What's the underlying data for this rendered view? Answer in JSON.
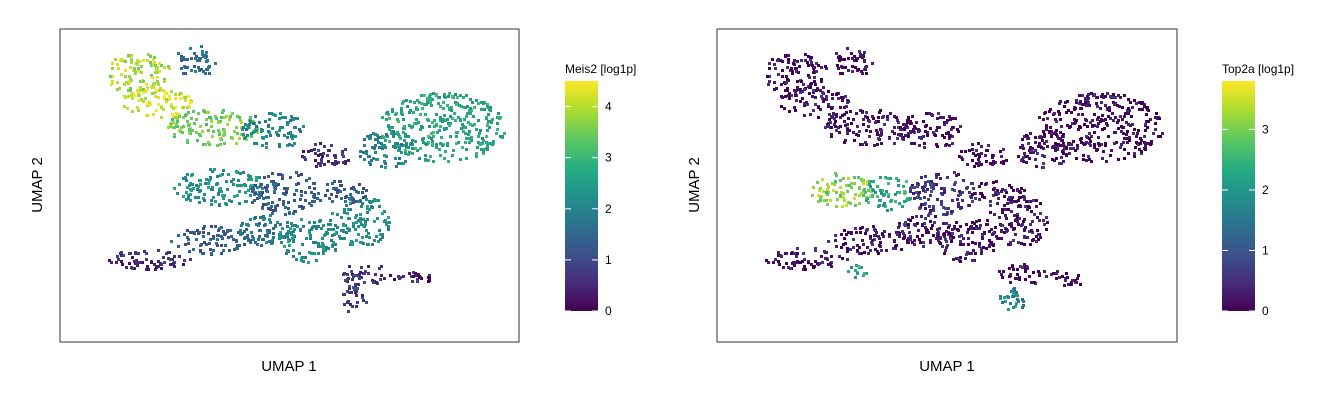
{
  "chart_data": [
    {
      "type": "scatter",
      "subtype": "umap-hexbin-feature-plot",
      "title": "",
      "xlabel": "UMAP 1",
      "ylabel": "UMAP 2",
      "legend": {
        "title": "Meis2 [log1p]",
        "placement": "right",
        "colormap": "viridis",
        "range": [
          0,
          4.5
        ],
        "ticks": [
          0,
          1,
          2,
          3,
          4
        ],
        "tick_labels": [
          "0",
          "1",
          "2",
          "3",
          "4"
        ]
      },
      "grid": false,
      "axis_ticks_shown": false,
      "regions": [
        {
          "x": 2.2,
          "y": 8.6,
          "rx": 0.9,
          "ry": 0.7,
          "value": 3.9
        },
        {
          "x": 2.7,
          "y": 7.7,
          "rx": 1.0,
          "ry": 0.5,
          "value": 4.2
        },
        {
          "x": 3.8,
          "y": 9.0,
          "rx": 0.6,
          "ry": 0.5,
          "value": 1.6
        },
        {
          "x": 4.3,
          "y": 6.9,
          "rx": 1.3,
          "ry": 0.6,
          "value": 3.5
        },
        {
          "x": 6.0,
          "y": 6.8,
          "rx": 0.9,
          "ry": 0.6,
          "value": 2.0
        },
        {
          "x": 7.5,
          "y": 6.0,
          "rx": 0.7,
          "ry": 0.4,
          "value": 0.6
        },
        {
          "x": 4.5,
          "y": 5.0,
          "rx": 1.3,
          "ry": 0.6,
          "value": 2.3
        },
        {
          "x": 6.3,
          "y": 4.8,
          "rx": 1.0,
          "ry": 0.7,
          "value": 1.3
        },
        {
          "x": 2.5,
          "y": 2.7,
          "rx": 1.2,
          "ry": 0.35,
          "value": 0.5
        },
        {
          "x": 4.3,
          "y": 3.3,
          "rx": 1.2,
          "ry": 0.45,
          "value": 1.3
        },
        {
          "x": 5.8,
          "y": 3.6,
          "rx": 0.9,
          "ry": 0.5,
          "value": 1.8
        },
        {
          "x": 7.0,
          "y": 3.3,
          "rx": 0.9,
          "ry": 0.7,
          "value": 2.2
        },
        {
          "x": 8.5,
          "y": 3.9,
          "rx": 0.9,
          "ry": 0.8,
          "value": 2.2
        },
        {
          "x": 7.9,
          "y": 4.8,
          "rx": 0.8,
          "ry": 0.4,
          "value": 1.3
        },
        {
          "x": 10.8,
          "y": 6.9,
          "rx": 1.8,
          "ry": 1.1,
          "value": 2.7
        },
        {
          "x": 9.2,
          "y": 6.2,
          "rx": 0.8,
          "ry": 0.6,
          "value": 2.0
        },
        {
          "x": 8.6,
          "y": 2.2,
          "rx": 0.7,
          "ry": 0.35,
          "value": 0.7
        },
        {
          "x": 8.3,
          "y": 1.4,
          "rx": 0.35,
          "ry": 0.5,
          "value": 0.8
        },
        {
          "x": 9.9,
          "y": 2.1,
          "rx": 0.6,
          "ry": 0.25,
          "value": 0.4
        }
      ]
    },
    {
      "type": "scatter",
      "subtype": "umap-hexbin-feature-plot",
      "title": "",
      "xlabel": "UMAP 1",
      "ylabel": "UMAP 2",
      "legend": {
        "title": "Top2a [log1p]",
        "placement": "right",
        "colormap": "viridis",
        "range": [
          0,
          3.8
        ],
        "ticks": [
          0,
          1,
          2,
          3
        ],
        "tick_labels": [
          "0",
          "1",
          "2",
          "3"
        ]
      },
      "grid": false,
      "axis_ticks_shown": false,
      "regions": [
        {
          "x": 2.2,
          "y": 8.6,
          "rx": 0.9,
          "ry": 0.7,
          "value": 0.1
        },
        {
          "x": 2.7,
          "y": 7.7,
          "rx": 1.0,
          "ry": 0.5,
          "value": 0.2
        },
        {
          "x": 3.8,
          "y": 9.0,
          "rx": 0.6,
          "ry": 0.5,
          "value": 0.1
        },
        {
          "x": 4.3,
          "y": 6.9,
          "rx": 1.3,
          "ry": 0.6,
          "value": 0.2
        },
        {
          "x": 6.0,
          "y": 6.8,
          "rx": 0.9,
          "ry": 0.6,
          "value": 0.1
        },
        {
          "x": 7.5,
          "y": 6.0,
          "rx": 0.7,
          "ry": 0.4,
          "value": 0.1
        },
        {
          "x": 3.5,
          "y": 4.9,
          "rx": 0.9,
          "ry": 0.55,
          "value": 3.1
        },
        {
          "x": 4.8,
          "y": 4.8,
          "rx": 0.7,
          "ry": 0.55,
          "value": 2.3
        },
        {
          "x": 6.3,
          "y": 4.8,
          "rx": 1.0,
          "ry": 0.7,
          "value": 0.6
        },
        {
          "x": 2.5,
          "y": 2.7,
          "rx": 1.2,
          "ry": 0.35,
          "value": 0.2
        },
        {
          "x": 3.9,
          "y": 2.3,
          "rx": 0.4,
          "ry": 0.2,
          "value": 2.3
        },
        {
          "x": 4.3,
          "y": 3.3,
          "rx": 1.2,
          "ry": 0.45,
          "value": 0.2
        },
        {
          "x": 5.8,
          "y": 3.6,
          "rx": 0.9,
          "ry": 0.5,
          "value": 0.3
        },
        {
          "x": 7.0,
          "y": 3.3,
          "rx": 0.9,
          "ry": 0.7,
          "value": 0.2
        },
        {
          "x": 8.5,
          "y": 3.9,
          "rx": 0.9,
          "ry": 0.8,
          "value": 0.2
        },
        {
          "x": 7.9,
          "y": 4.8,
          "rx": 0.8,
          "ry": 0.4,
          "value": 0.2
        },
        {
          "x": 10.8,
          "y": 6.9,
          "rx": 1.8,
          "ry": 1.1,
          "value": 0.1
        },
        {
          "x": 9.2,
          "y": 6.2,
          "rx": 0.8,
          "ry": 0.6,
          "value": 0.2
        },
        {
          "x": 8.6,
          "y": 2.2,
          "rx": 0.7,
          "ry": 0.35,
          "value": 0.1
        },
        {
          "x": 8.3,
          "y": 1.4,
          "rx": 0.35,
          "ry": 0.5,
          "value": 1.8
        },
        {
          "x": 9.9,
          "y": 2.1,
          "rx": 0.6,
          "ry": 0.25,
          "value": 0.1
        }
      ]
    }
  ]
}
